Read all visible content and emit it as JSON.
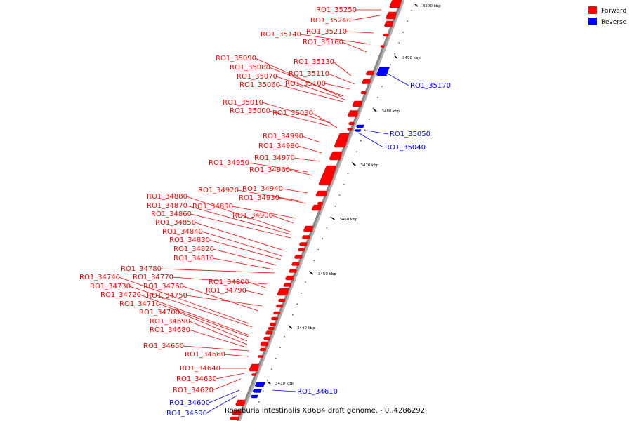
{
  "caption": "Roseburia intestinalis XB6B4 draft genome. - 0..4286292",
  "legend": [
    {
      "label": "Forward",
      "color": "#ff0000"
    },
    {
      "label": "Reverse",
      "color": "#0000ff"
    }
  ],
  "colors": {
    "forward": "#ff0000",
    "reverse": "#0000ff",
    "backbone": "#888888"
  },
  "ticks": [
    "3500 kbp",
    "3490 kbp",
    "3480 kbp",
    "3470 kbp",
    "3460 kbp",
    "3450 kbp",
    "3440 kbp",
    "3430 kbp"
  ],
  "forward_genes": [
    "RO1_35250",
    "RO1_35240",
    "RO1_35210",
    "RO1_35140",
    "RO1_35160",
    "RO1_35090",
    "RO1_35130",
    "RO1_35080",
    "RO1_35110",
    "RO1_35070",
    "RO1_35060",
    "RO1_35100",
    "RO1_35010",
    "RO1_35000",
    "RO1_35030",
    "RO1_34990",
    "RO1_34980",
    "RO1_34970",
    "RO1_34950",
    "RO1_34960",
    "RO1_34920",
    "RO1_34940",
    "RO1_34880",
    "RO1_34930",
    "RO1_34870",
    "RO1_34890",
    "RO1_34860",
    "RO1_34900",
    "RO1_34850",
    "RO1_34840",
    "RO1_34830",
    "RO1_34820",
    "RO1_34810",
    "RO1_34780",
    "RO1_34740",
    "RO1_34770",
    "RO1_34800",
    "RO1_34730",
    "RO1_34760",
    "RO1_34790",
    "RO1_34720",
    "RO1_34750",
    "RO1_34710",
    "RO1_34700",
    "RO1_34690",
    "RO1_34680",
    "RO1_34650",
    "RO1_34660",
    "RO1_34640",
    "RO1_34630",
    "RO1_34620"
  ],
  "reverse_genes": [
    "RO1_35170",
    "RO1_35050",
    "RO1_35040",
    "RO1_34610",
    "RO1_34600",
    "RO1_34590"
  ]
}
